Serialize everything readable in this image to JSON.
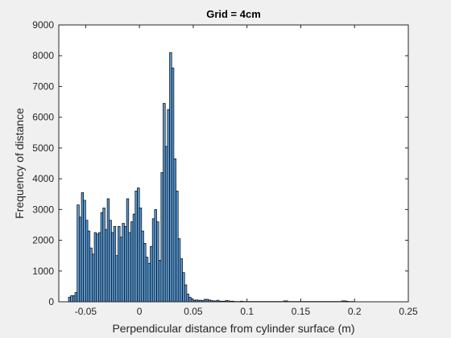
{
  "chart_data": {
    "type": "bar",
    "title": "Grid = 4cm",
    "xlabel": "Perpendicular distance from cylinder surface (m)",
    "ylabel": "Frequency of distance",
    "xlim": [
      -0.075,
      0.25
    ],
    "ylim": [
      0,
      9000
    ],
    "xticks": [
      -0.05,
      0,
      0.05,
      0.1,
      0.15,
      0.2,
      0.25
    ],
    "xtick_labels": [
      "-0.05",
      "0",
      "0.05",
      "0.1",
      "0.15",
      "0.2",
      "0.25"
    ],
    "yticks": [
      0,
      1000,
      2000,
      3000,
      4000,
      5000,
      6000,
      7000,
      8000,
      9000
    ],
    "ytick_labels": [
      "0",
      "1000",
      "2000",
      "3000",
      "4000",
      "5000",
      "6000",
      "7000",
      "8000",
      "9000"
    ],
    "grid": false,
    "bar_color": "#5b9bd5",
    "edge_color": "#000000",
    "bin_width": 0.002,
    "bin_starts": [
      -0.066,
      -0.064,
      -0.062,
      -0.06,
      -0.058,
      -0.056,
      -0.054,
      -0.052,
      -0.05,
      -0.048,
      -0.046,
      -0.044,
      -0.042,
      -0.04,
      -0.038,
      -0.036,
      -0.034,
      -0.032,
      -0.03,
      -0.028,
      -0.026,
      -0.024,
      -0.022,
      -0.02,
      -0.018,
      -0.016,
      -0.014,
      -0.012,
      -0.01,
      -0.008,
      -0.006,
      -0.004,
      -0.002,
      0.0,
      0.002,
      0.004,
      0.006,
      0.008,
      0.01,
      0.012,
      0.014,
      0.016,
      0.018,
      0.02,
      0.022,
      0.024,
      0.026,
      0.028,
      0.03,
      0.032,
      0.034,
      0.036,
      0.038,
      0.04,
      0.042,
      0.044,
      0.046,
      0.048,
      0.05,
      0.052,
      0.054,
      0.056,
      0.058,
      0.06,
      0.062,
      0.064,
      0.066,
      0.068,
      0.07,
      0.072,
      0.074,
      0.076,
      0.078,
      0.08,
      0.082,
      0.084,
      0.086,
      0.088,
      0.09,
      0.092,
      0.094,
      0.096,
      0.098,
      0.1,
      0.102,
      0.104,
      0.106,
      0.108,
      0.11,
      0.112,
      0.114,
      0.116,
      0.118,
      0.12,
      0.122,
      0.124,
      0.126,
      0.128,
      0.13,
      0.132,
      0.134,
      0.136,
      0.138,
      0.14,
      0.142,
      0.144,
      0.146,
      0.148,
      0.15,
      0.152,
      0.154,
      0.156,
      0.158,
      0.16,
      0.162,
      0.164,
      0.166,
      0.168,
      0.17,
      0.172,
      0.174,
      0.176,
      0.178,
      0.18,
      0.182,
      0.184,
      0.186,
      0.188,
      0.19,
      0.192,
      0.194,
      0.196,
      0.198
    ],
    "values": [
      150,
      200,
      200,
      300,
      3150,
      2750,
      3550,
      3300,
      2650,
      2300,
      1750,
      1550,
      2250,
      2200,
      2250,
      2900,
      3050,
      2350,
      3350,
      2650,
      2250,
      2450,
      1500,
      2450,
      2100,
      2550,
      2450,
      3350,
      2250,
      2600,
      2850,
      3600,
      3700,
      3050,
      2300,
      1900,
      1450,
      1250,
      1800,
      2700,
      3000,
      2600,
      1350,
      4200,
      6450,
      5050,
      6250,
      8100,
      7600,
      4650,
      3600,
      2050,
      1400,
      950,
      550,
      250,
      150,
      100,
      50,
      60,
      50,
      50,
      40,
      80,
      80,
      60,
      40,
      30,
      30,
      50,
      20,
      20,
      20,
      40,
      30,
      20,
      20,
      10,
      10,
      10,
      20,
      10,
      10,
      10,
      10,
      10,
      10,
      10,
      10,
      10,
      10,
      10,
      10,
      10,
      10,
      10,
      10,
      10,
      10,
      10,
      30,
      30,
      10,
      10,
      10,
      10,
      10,
      10,
      10,
      10,
      10,
      10,
      10,
      10,
      10,
      10,
      10,
      10,
      10,
      10,
      10,
      10,
      10,
      10,
      10,
      10,
      10,
      30,
      30,
      20,
      10,
      10,
      10
    ]
  }
}
